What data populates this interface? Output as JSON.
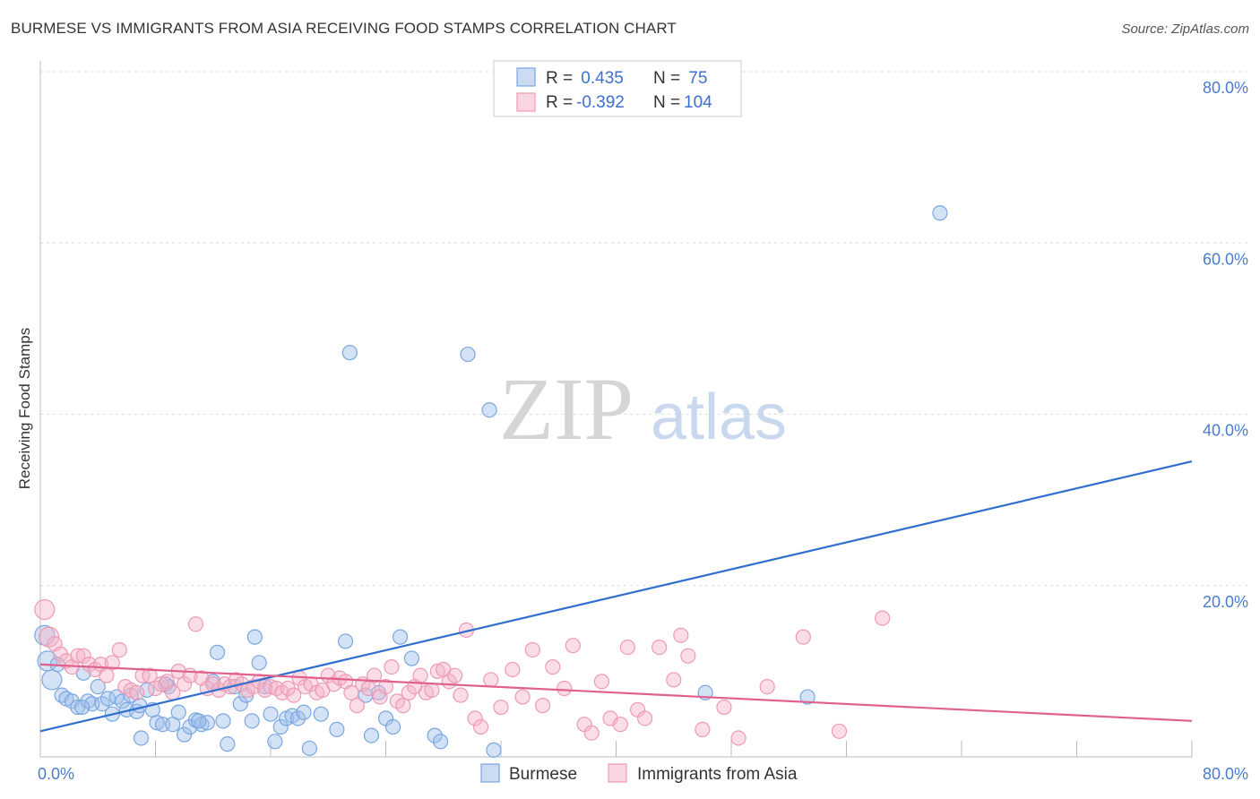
{
  "title": "BURMESE VS IMMIGRANTS FROM ASIA RECEIVING FOOD STAMPS CORRELATION CHART",
  "source": "Source: ZipAtlas.com",
  "watermark": {
    "zip": "ZIP",
    "atlas": "atlas"
  },
  "colors": {
    "blue": "#7aa6e0",
    "blue_fill": "rgba(160,190,235,0.45)",
    "blue_line": "#2f6fce",
    "pink": "#ee9ab5",
    "pink_fill": "rgba(245,180,200,0.45)",
    "pink_line": "#e0608e",
    "axis_text": "#4a7ccc",
    "grid": "#dddddd"
  },
  "legend": {
    "rows": [
      {
        "r_label": "R = ",
        "r_value": " 0.435",
        "n_label": "N = ",
        "n_value": " 75"
      },
      {
        "r_label": "R = ",
        "r_value": "-0.392",
        "n_label": "N = ",
        "n_value": "104"
      }
    ]
  },
  "chart_data": {
    "type": "scatter",
    "title": "BURMESE VS IMMIGRANTS FROM ASIA RECEIVING FOOD STAMPS CORRELATION CHART",
    "xlabel": "",
    "ylabel": "Receiving Food Stamps",
    "xlim": [
      0,
      80
    ],
    "ylim": [
      0,
      80
    ],
    "x_tick_labels": [
      "0.0%",
      "80.0%"
    ],
    "y_ticks": [
      20,
      40,
      60,
      80
    ],
    "y_tick_labels": [
      "20.0%",
      "40.0%",
      "60.0%",
      "80.0%"
    ],
    "series": [
      {
        "name": "Burmese",
        "color": "#7aa6e0",
        "r": 0.435,
        "n": 75,
        "trend": {
          "x": [
            0,
            80
          ],
          "y": [
            3.0,
            34.5
          ]
        },
        "points": [
          [
            0.3,
            14.2
          ],
          [
            0.5,
            11.2
          ],
          [
            0.8,
            9.0
          ],
          [
            1.2,
            10.8
          ],
          [
            1.5,
            7.2
          ],
          [
            1.8,
            6.8
          ],
          [
            2.2,
            6.5
          ],
          [
            2.6,
            5.8
          ],
          [
            3.0,
            9.8
          ],
          [
            3.3,
            6.5
          ],
          [
            3.6,
            6.2
          ],
          [
            4.0,
            8.2
          ],
          [
            4.3,
            6.2
          ],
          [
            4.7,
            6.8
          ],
          [
            5.0,
            5.0
          ],
          [
            5.3,
            7.0
          ],
          [
            5.7,
            6.5
          ],
          [
            6.0,
            5.5
          ],
          [
            6.3,
            7.2
          ],
          [
            6.7,
            5.3
          ],
          [
            7.0,
            2.2
          ],
          [
            7.4,
            7.8
          ],
          [
            7.8,
            5.5
          ],
          [
            8.1,
            4.0
          ],
          [
            8.5,
            3.8
          ],
          [
            8.9,
            8.2
          ],
          [
            9.2,
            3.8
          ],
          [
            9.6,
            5.2
          ],
          [
            10.0,
            2.6
          ],
          [
            10.4,
            3.5
          ],
          [
            10.8,
            4.3
          ],
          [
            11.2,
            3.8
          ],
          [
            11.6,
            4.0
          ],
          [
            12.0,
            8.8
          ],
          [
            12.3,
            12.2
          ],
          [
            12.7,
            4.2
          ],
          [
            13.0,
            1.5
          ],
          [
            13.5,
            8.2
          ],
          [
            13.9,
            6.2
          ],
          [
            14.3,
            7.2
          ],
          [
            14.7,
            4.2
          ],
          [
            14.9,
            14.0
          ],
          [
            15.2,
            11.0
          ],
          [
            15.6,
            8.2
          ],
          [
            16.0,
            5.0
          ],
          [
            16.3,
            1.8
          ],
          [
            16.7,
            3.5
          ],
          [
            17.1,
            4.5
          ],
          [
            17.5,
            4.8
          ],
          [
            17.9,
            4.5
          ],
          [
            18.3,
            5.2
          ],
          [
            18.7,
            1.0
          ],
          [
            19.5,
            5.0
          ],
          [
            20.6,
            3.2
          ],
          [
            21.2,
            13.5
          ],
          [
            21.5,
            47.2
          ],
          [
            22.6,
            7.2
          ],
          [
            23.0,
            2.5
          ],
          [
            23.5,
            7.5
          ],
          [
            24.0,
            4.5
          ],
          [
            24.5,
            3.5
          ],
          [
            25.0,
            14.0
          ],
          [
            25.8,
            11.5
          ],
          [
            27.4,
            2.5
          ],
          [
            27.8,
            1.8
          ],
          [
            29.7,
            47.0
          ],
          [
            31.2,
            40.5
          ],
          [
            31.5,
            0.8
          ],
          [
            46.2,
            7.5
          ],
          [
            53.3,
            7.0
          ],
          [
            62.5,
            63.5
          ],
          [
            8.7,
            8.5
          ],
          [
            11.0,
            4.2
          ],
          [
            6.9,
            6.0
          ],
          [
            2.9,
            5.8
          ]
        ]
      },
      {
        "name": "Immigrants from Asia",
        "color": "#ee9ab5",
        "r": -0.392,
        "n": 104,
        "trend": {
          "x": [
            0,
            80
          ],
          "y": [
            10.8,
            4.2
          ]
        },
        "points": [
          [
            0.3,
            17.2
          ],
          [
            0.6,
            14.0
          ],
          [
            1.0,
            13.2
          ],
          [
            1.4,
            12.0
          ],
          [
            1.8,
            11.2
          ],
          [
            2.2,
            10.5
          ],
          [
            2.6,
            11.8
          ],
          [
            3.0,
            11.8
          ],
          [
            3.4,
            10.8
          ],
          [
            3.8,
            10.2
          ],
          [
            4.2,
            10.8
          ],
          [
            4.6,
            9.5
          ],
          [
            5.0,
            11.0
          ],
          [
            5.5,
            12.5
          ],
          [
            5.9,
            8.2
          ],
          [
            6.3,
            7.8
          ],
          [
            6.7,
            7.5
          ],
          [
            7.1,
            9.5
          ],
          [
            7.6,
            9.5
          ],
          [
            8.0,
            8.0
          ],
          [
            8.4,
            8.5
          ],
          [
            8.8,
            8.8
          ],
          [
            9.2,
            7.5
          ],
          [
            9.6,
            10.0
          ],
          [
            10.0,
            8.5
          ],
          [
            10.4,
            9.5
          ],
          [
            10.8,
            15.5
          ],
          [
            11.2,
            9.2
          ],
          [
            11.6,
            8.0
          ],
          [
            12.0,
            8.5
          ],
          [
            12.4,
            7.8
          ],
          [
            12.8,
            8.5
          ],
          [
            13.2,
            8.2
          ],
          [
            13.6,
            9.0
          ],
          [
            14.0,
            8.5
          ],
          [
            14.4,
            7.8
          ],
          [
            14.8,
            8.2
          ],
          [
            15.2,
            8.8
          ],
          [
            15.6,
            7.8
          ],
          [
            16.0,
            8.2
          ],
          [
            16.4,
            8.0
          ],
          [
            16.8,
            7.5
          ],
          [
            17.2,
            8.0
          ],
          [
            17.6,
            7.2
          ],
          [
            18.0,
            9.2
          ],
          [
            18.4,
            8.2
          ],
          [
            18.8,
            8.5
          ],
          [
            19.2,
            7.5
          ],
          [
            19.6,
            7.8
          ],
          [
            20.0,
            9.5
          ],
          [
            20.4,
            8.5
          ],
          [
            20.8,
            9.2
          ],
          [
            21.2,
            8.8
          ],
          [
            21.6,
            7.5
          ],
          [
            22.0,
            6.0
          ],
          [
            22.4,
            8.5
          ],
          [
            22.8,
            8.0
          ],
          [
            23.2,
            9.5
          ],
          [
            23.6,
            7.0
          ],
          [
            24.0,
            8.2
          ],
          [
            24.4,
            10.5
          ],
          [
            24.8,
            6.5
          ],
          [
            25.2,
            6.0
          ],
          [
            25.6,
            7.5
          ],
          [
            26.0,
            8.2
          ],
          [
            26.4,
            9.5
          ],
          [
            26.8,
            7.5
          ],
          [
            27.2,
            7.8
          ],
          [
            27.6,
            10.0
          ],
          [
            28.0,
            10.2
          ],
          [
            28.4,
            8.8
          ],
          [
            28.8,
            9.5
          ],
          [
            29.2,
            7.2
          ],
          [
            29.6,
            14.8
          ],
          [
            30.2,
            4.5
          ],
          [
            30.6,
            3.5
          ],
          [
            31.3,
            9.0
          ],
          [
            32.0,
            5.8
          ],
          [
            32.8,
            10.2
          ],
          [
            33.5,
            7.0
          ],
          [
            34.2,
            12.5
          ],
          [
            34.9,
            6.0
          ],
          [
            35.6,
            10.5
          ],
          [
            36.4,
            8.0
          ],
          [
            37.0,
            13.0
          ],
          [
            37.8,
            3.8
          ],
          [
            38.3,
            2.8
          ],
          [
            39.0,
            8.8
          ],
          [
            39.6,
            4.5
          ],
          [
            40.3,
            3.8
          ],
          [
            40.8,
            12.8
          ],
          [
            41.5,
            5.5
          ],
          [
            42.0,
            4.5
          ],
          [
            43.0,
            12.8
          ],
          [
            44.0,
            9.0
          ],
          [
            44.5,
            14.2
          ],
          [
            45.0,
            11.8
          ],
          [
            46.0,
            3.2
          ],
          [
            47.5,
            5.8
          ],
          [
            48.5,
            2.2
          ],
          [
            50.5,
            8.2
          ],
          [
            53.0,
            14.0
          ],
          [
            55.5,
            3.0
          ],
          [
            58.5,
            16.2
          ]
        ]
      }
    ]
  },
  "bottom_legend": [
    "Burmese",
    "Immigrants from Asia"
  ]
}
